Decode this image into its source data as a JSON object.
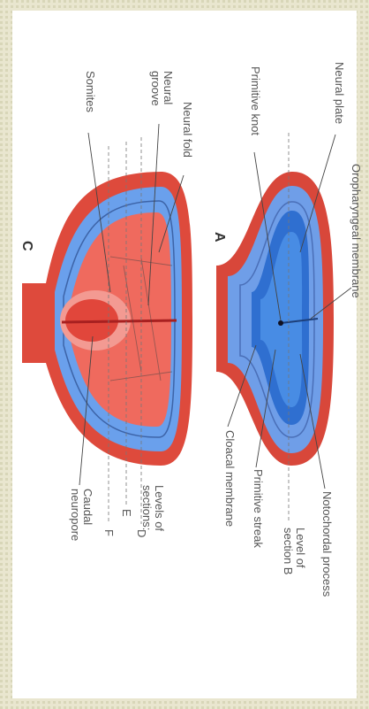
{
  "figure_a": {
    "letter": "A",
    "oropharyngeal_membrane": "Oropharyngeal membrane",
    "neural_plate": "Neural plate",
    "primitive_knot": "Primitive knot",
    "notochordal_process": "Notochordal process",
    "level_of_section": [
      "Level of",
      "section B"
    ],
    "primitive_streak": "Primitive streak",
    "cloacal_membrane": "Cloacal membrane"
  },
  "figure_c": {
    "letter": "C",
    "neural_fold": "Neural fold",
    "neural_groove": [
      "Neural",
      "groove"
    ],
    "somites": "Somites",
    "levels_of_sections": [
      "Levels of",
      "sections:"
    ],
    "levels": [
      "D",
      "E",
      "F"
    ],
    "caudal_neuropore": [
      "Caudal",
      "neuropore"
    ]
  }
}
